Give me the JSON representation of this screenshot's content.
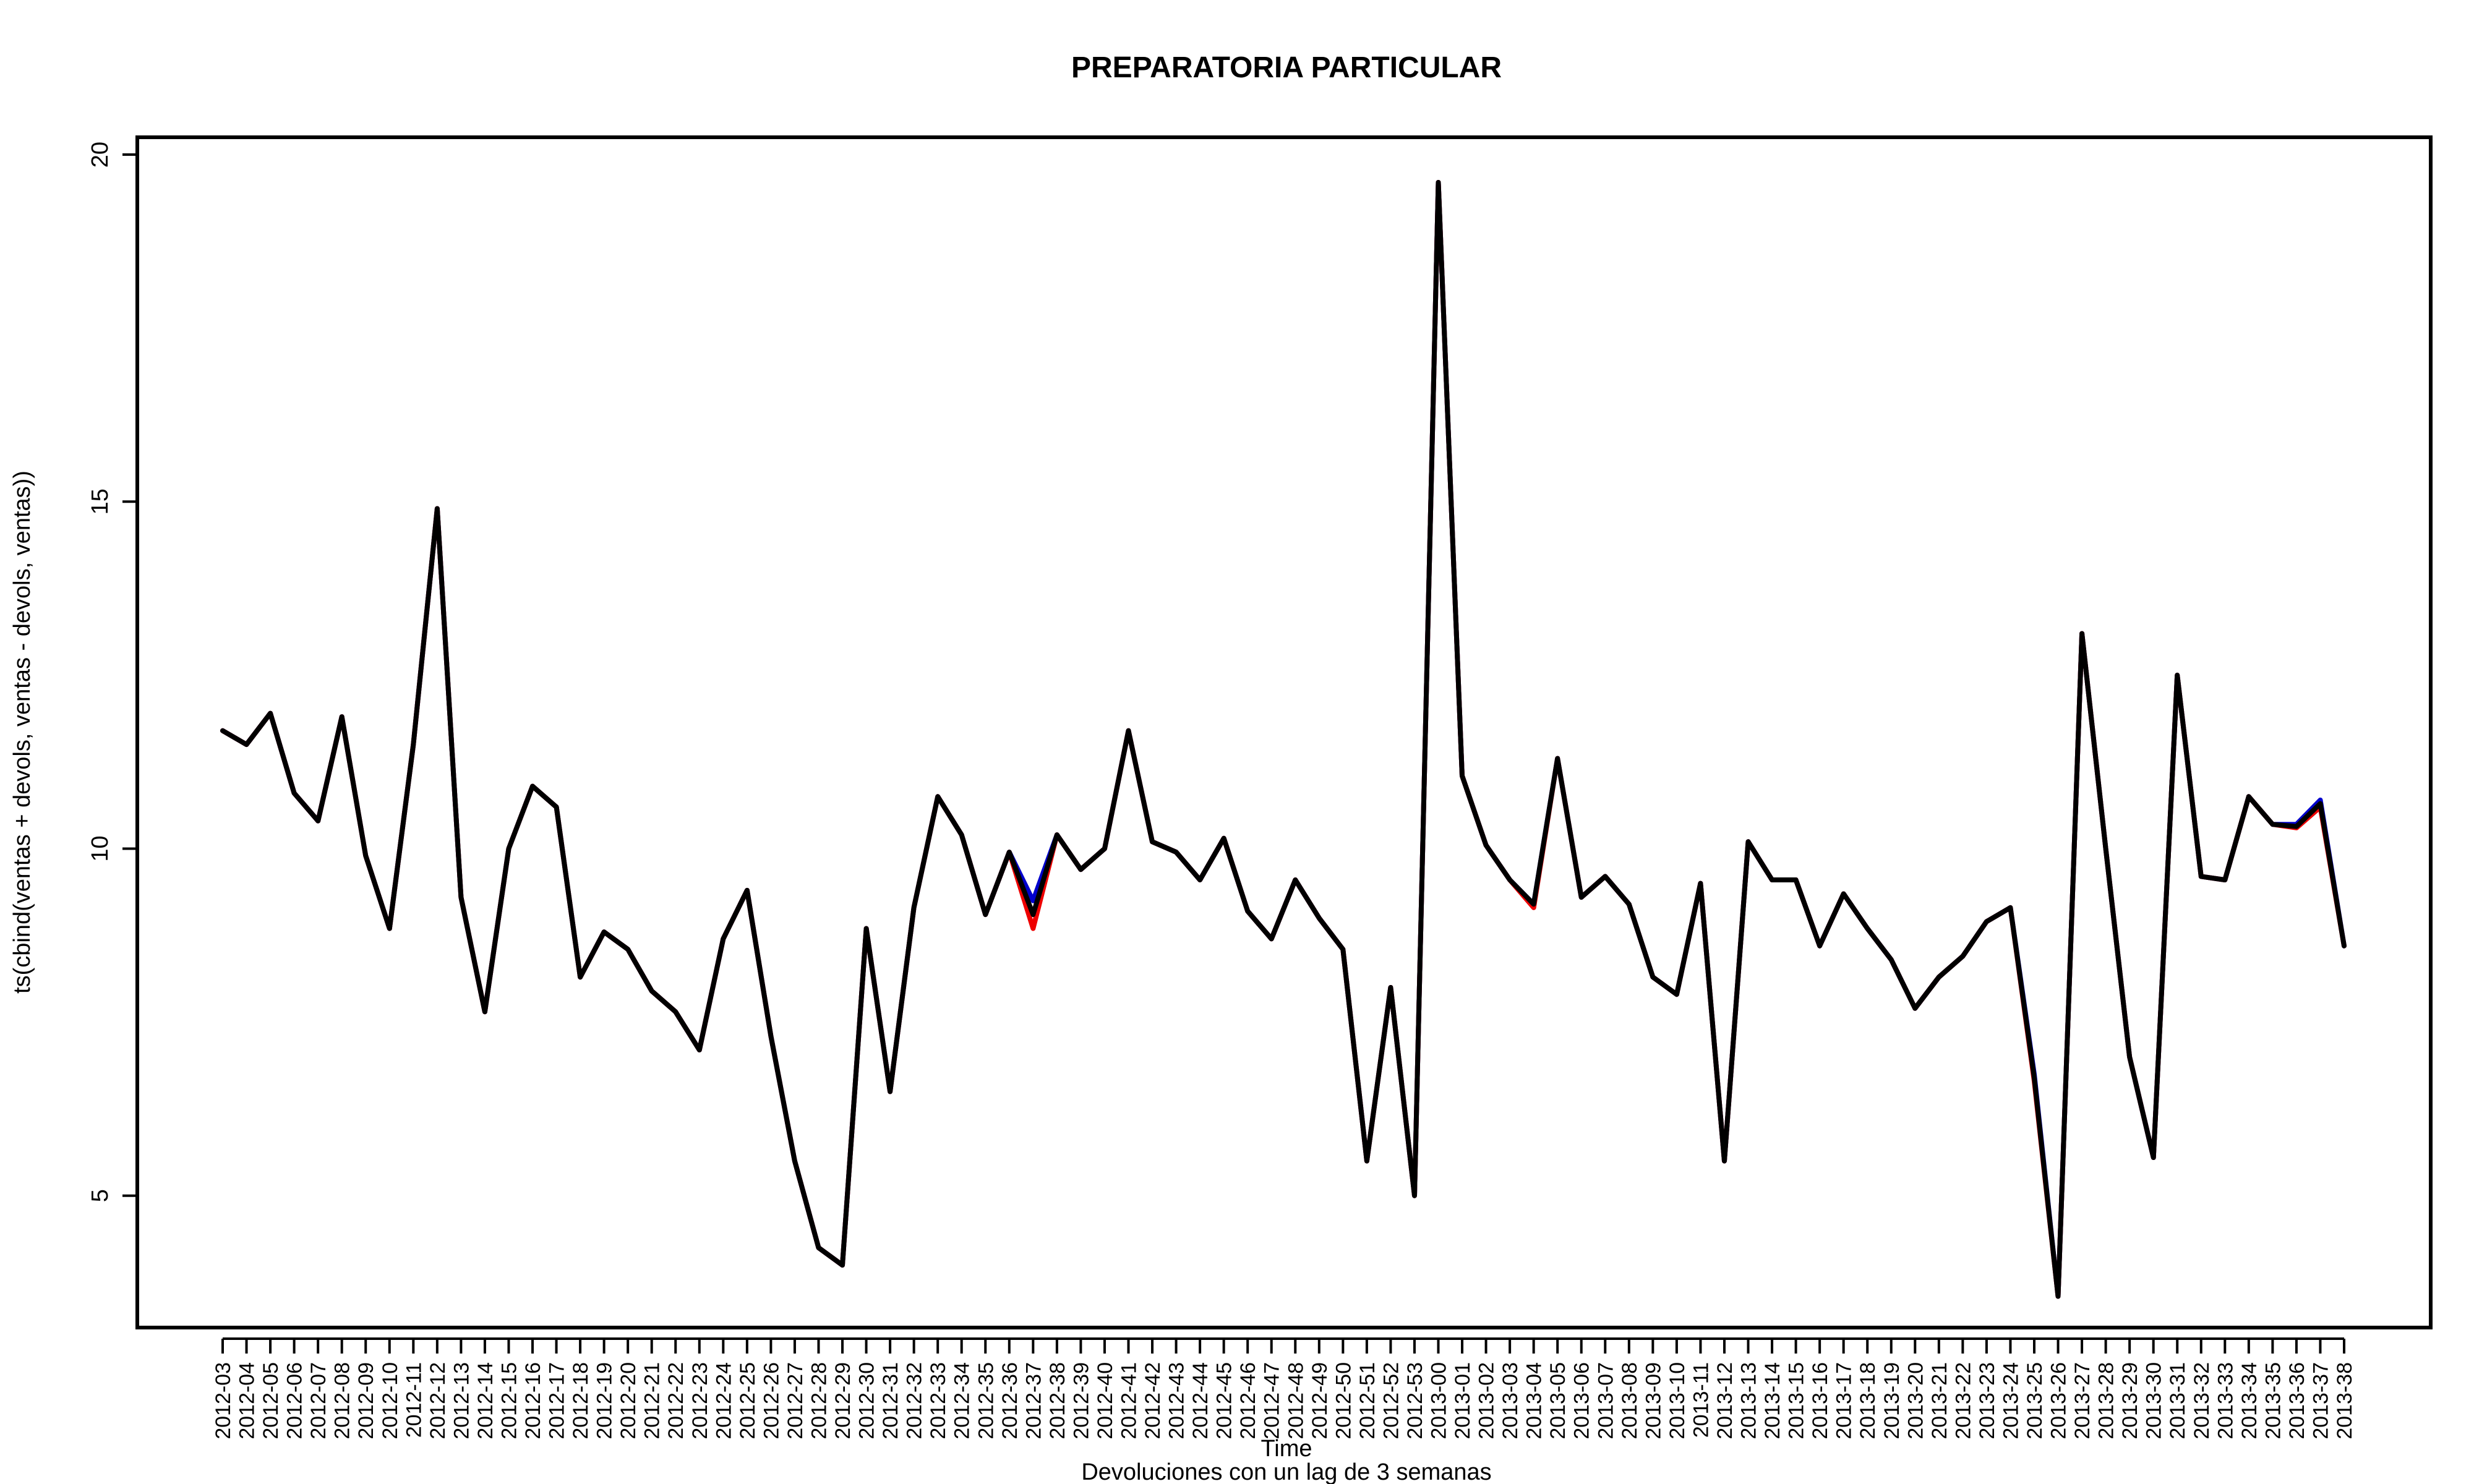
{
  "chart_data": {
    "type": "line",
    "title": "PREPARATORIA PARTICULAR",
    "xlabel": "Time",
    "sublabel": "Devoluciones con un lag de 3 semanas",
    "ylabel": "ts(cbind(ventas + devols, ventas - devols, ventas))",
    "ylim": [
      3.1,
      20.25
    ],
    "yticks": [
      5,
      10,
      15,
      20
    ],
    "grid": false,
    "x": [
      "2012-03",
      "2012-04",
      "2012-05",
      "2012-06",
      "2012-07",
      "2012-08",
      "2012-09",
      "2012-10",
      "2012-11",
      "2012-12",
      "2012-13",
      "2012-14",
      "2012-15",
      "2012-16",
      "2012-17",
      "2012-18",
      "2012-19",
      "2012-20",
      "2012-21",
      "2012-22",
      "2012-23",
      "2012-24",
      "2012-25",
      "2012-26",
      "2012-27",
      "2012-28",
      "2012-29",
      "2012-30",
      "2012-31",
      "2012-32",
      "2012-33",
      "2012-34",
      "2012-35",
      "2012-36",
      "2012-37",
      "2012-38",
      "2012-39",
      "2012-40",
      "2012-41",
      "2012-42",
      "2012-43",
      "2012-44",
      "2012-45",
      "2012-46",
      "2012-47",
      "2012-48",
      "2012-49",
      "2012-50",
      "2012-51",
      "2012-52",
      "2012-53",
      "2013-00",
      "2013-01",
      "2013-02",
      "2013-03",
      "2013-04",
      "2013-05",
      "2013-06",
      "2013-07",
      "2013-08",
      "2013-09",
      "2013-10",
      "2013-11",
      "2013-12",
      "2013-13",
      "2013-14",
      "2013-15",
      "2013-16",
      "2013-17",
      "2013-18",
      "2013-19",
      "2013-20",
      "2013-21",
      "2013-22",
      "2013-23",
      "2013-24",
      "2013-25",
      "2013-26",
      "2013-27",
      "2013-28",
      "2013-29",
      "2013-30",
      "2013-31",
      "2013-32",
      "2013-33",
      "2013-34",
      "2013-35",
      "2013-36",
      "2013-37",
      "2013-38"
    ],
    "series": [
      {
        "color": "#0000cc",
        "values": [
          11.7,
          11.5,
          11.95,
          10.8,
          10.4,
          11.9,
          9.9,
          8.85,
          11.5,
          14.9,
          9.3,
          7.65,
          10.0,
          10.9,
          10.6,
          8.15,
          8.8,
          8.55,
          7.95,
          7.65,
          7.1,
          8.7,
          9.4,
          7.3,
          5.5,
          4.25,
          4.0,
          8.85,
          6.5,
          9.15,
          10.75,
          10.2,
          9.05,
          9.95,
          9.25,
          10.2,
          9.7,
          10.0,
          11.7,
          10.1,
          9.95,
          9.55,
          10.15,
          9.1,
          8.7,
          9.55,
          9.0,
          8.55,
          5.5,
          8.0,
          5.0,
          19.6,
          11.05,
          10.05,
          9.55,
          9.2,
          11.3,
          9.3,
          9.6,
          9.2,
          8.15,
          7.9,
          9.5,
          5.5,
          10.1,
          9.55,
          9.55,
          8.6,
          9.35,
          8.85,
          8.4,
          7.7,
          8.15,
          8.45,
          8.95,
          9.15,
          6.75,
          3.55,
          13.1,
          10.0,
          7.0,
          5.55,
          12.5,
          9.6,
          9.55,
          10.75,
          10.35,
          10.35,
          10.7,
          8.6
        ]
      },
      {
        "color": "#ee0000",
        "values": [
          11.7,
          11.5,
          11.95,
          10.8,
          10.4,
          11.9,
          9.9,
          8.85,
          11.5,
          14.9,
          9.3,
          7.65,
          10.0,
          10.9,
          10.6,
          8.15,
          8.8,
          8.55,
          7.95,
          7.65,
          7.1,
          8.7,
          9.4,
          7.3,
          5.5,
          4.25,
          4.0,
          8.85,
          6.5,
          9.15,
          10.75,
          10.2,
          9.05,
          9.95,
          8.85,
          10.2,
          9.7,
          10.0,
          11.7,
          10.1,
          9.95,
          9.55,
          10.15,
          9.1,
          8.7,
          9.55,
          9.0,
          8.55,
          5.5,
          8.0,
          5.0,
          19.6,
          11.05,
          10.05,
          9.55,
          9.15,
          11.3,
          9.3,
          9.6,
          9.2,
          8.15,
          7.9,
          9.5,
          5.5,
          10.1,
          9.55,
          9.55,
          8.6,
          9.35,
          8.85,
          8.4,
          7.7,
          8.15,
          8.45,
          8.95,
          9.15,
          6.65,
          3.55,
          13.1,
          10.0,
          7.0,
          5.55,
          12.5,
          9.6,
          9.55,
          10.75,
          10.35,
          10.3,
          10.6,
          8.6
        ]
      },
      {
        "color": "#000000",
        "values": [
          11.7,
          11.5,
          11.95,
          10.8,
          10.4,
          11.9,
          9.9,
          8.85,
          11.5,
          14.9,
          9.3,
          7.65,
          10.0,
          10.9,
          10.6,
          8.15,
          8.8,
          8.55,
          7.95,
          7.65,
          7.1,
          8.7,
          9.4,
          7.3,
          5.5,
          4.25,
          4.0,
          8.85,
          6.5,
          9.15,
          10.75,
          10.2,
          9.05,
          9.95,
          9.05,
          10.2,
          9.7,
          10.0,
          11.7,
          10.1,
          9.95,
          9.55,
          10.15,
          9.1,
          8.7,
          9.55,
          9.0,
          8.55,
          5.5,
          8.0,
          5.0,
          19.6,
          11.05,
          10.05,
          9.55,
          9.2,
          11.3,
          9.3,
          9.6,
          9.2,
          8.15,
          7.9,
          9.5,
          5.5,
          10.1,
          9.55,
          9.55,
          8.6,
          9.35,
          8.85,
          8.4,
          7.7,
          8.15,
          8.45,
          8.95,
          9.15,
          6.7,
          3.55,
          13.1,
          10.0,
          7.0,
          5.55,
          12.5,
          9.6,
          9.55,
          10.75,
          10.35,
          10.32,
          10.65,
          8.6
        ]
      }
    ]
  }
}
